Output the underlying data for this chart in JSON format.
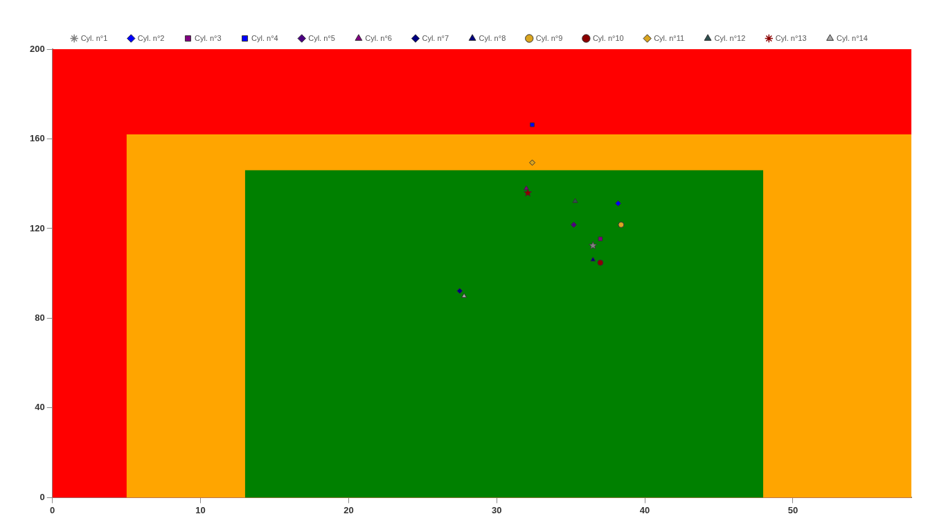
{
  "chart_data": {
    "type": "scatter",
    "xlim": [
      0,
      58
    ],
    "xticks": [
      0,
      10,
      20,
      30,
      40,
      50
    ],
    "ylim": [
      0,
      200
    ],
    "yticks": [
      0,
      40,
      80,
      120,
      160,
      200
    ],
    "legend": "top",
    "series": [
      {
        "type": "area",
        "color": "#ff0000",
        "x": [
          0,
          58
        ],
        "values": [
          200,
          200
        ]
      },
      {
        "type": "area",
        "color": "#ffa500",
        "x": [
          5,
          58
        ],
        "values": [
          162,
          162
        ]
      },
      {
        "type": "area",
        "color": "#008000",
        "x": [
          13,
          48
        ],
        "values": [
          146,
          146
        ]
      },
      {
        "name": "Cyl. n°1",
        "color": "#808080",
        "marker": "star",
        "x": [
          36.5
        ],
        "values": [
          112.4
        ]
      },
      {
        "name": "Cyl. n°2",
        "color": "#0000ff",
        "marker": "diamond",
        "x": [
          38.2
        ],
        "values": [
          131.2
        ]
      },
      {
        "name": "Cyl. n°3",
        "color": "#800080",
        "marker": "square",
        "x": [
          37.0
        ],
        "values": [
          115.4
        ]
      },
      {
        "name": "Cyl. n°4",
        "color": "#0000ff",
        "marker": "square",
        "x": [
          32.4
        ],
        "values": [
          166.3
        ]
      },
      {
        "name": "Cyl. n°5",
        "color": "#4b0082",
        "marker": "diamond",
        "x": [
          35.2
        ],
        "values": [
          121.7
        ]
      },
      {
        "name": "Cyl. n°6",
        "color": "#800080",
        "marker": "triangle",
        "x": [
          32.0
        ],
        "values": [
          137.9
        ]
      },
      {
        "name": "Cyl. n°7",
        "color": "#000080",
        "marker": "diamond",
        "x": [
          27.5
        ],
        "values": [
          92.2
        ]
      },
      {
        "name": "Cyl. n°8",
        "color": "#000080",
        "marker": "triangle",
        "x": [
          36.5
        ],
        "values": [
          106.1
        ]
      },
      {
        "name": "Cyl. n°9",
        "color": "#daa520",
        "marker": "circle",
        "x": [
          38.4
        ],
        "values": [
          121.7
        ]
      },
      {
        "name": "Cyl. n°10",
        "color": "#8b0000",
        "marker": "circle",
        "x": [
          37.0
        ],
        "values": [
          104.8
        ]
      },
      {
        "name": "Cyl. n°11",
        "color": "#daa520",
        "marker": "diamond",
        "x": [
          32.4
        ],
        "values": [
          149.4
        ]
      },
      {
        "name": "Cyl. n°12",
        "color": "#2f4f4f",
        "marker": "triangle",
        "x": [
          35.3
        ],
        "values": [
          132.2
        ]
      },
      {
        "name": "Cyl. n°13",
        "color": "#8b0000",
        "marker": "star",
        "x": [
          32.1
        ],
        "values": [
          135.9
        ]
      },
      {
        "name": "Cyl. n°14",
        "color": "#a9a9a9",
        "marker": "triangle",
        "x": [
          27.8
        ],
        "values": [
          89.9
        ]
      }
    ]
  }
}
